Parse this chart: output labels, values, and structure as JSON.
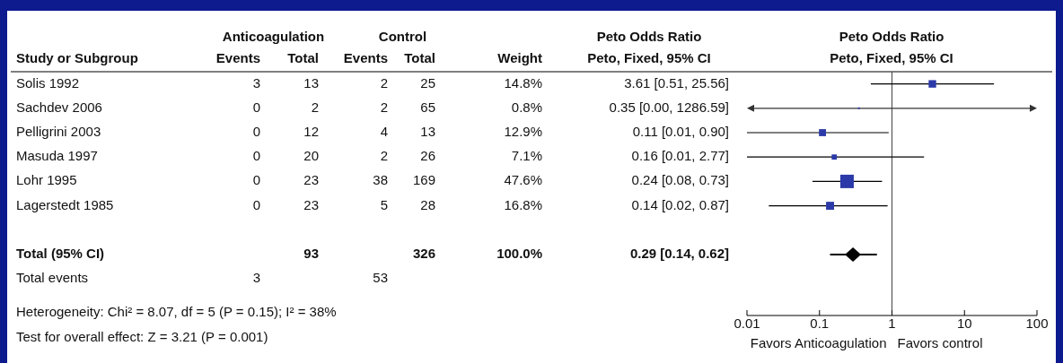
{
  "chart_data": [
    {
      "type": "other",
      "categories": [
        "Solis 1992",
        "Sachdev 2006",
        "Pelligrini 2003",
        "Masuda 1997",
        "Lohr 1995",
        "Lagerstedt 1985",
        "Total (95% CI)",
        "Total events"
      ],
      "series": [
        {
          "name": "Events",
          "values": [
            3,
            0,
            0,
            0,
            0,
            0,
            null,
            3
          ]
        },
        {
          "name": "Total",
          "values": [
            13,
            2,
            12,
            20,
            23,
            23,
            93,
            null
          ]
        },
        {
          "name": "Events",
          "values": [
            2,
            2,
            4,
            2,
            38,
            5,
            null,
            53
          ]
        },
        {
          "name": "Total",
          "values": [
            25,
            65,
            13,
            26,
            169,
            28,
            326,
            null
          ]
        },
        {
          "name": "Weight",
          "values": [
            14.8,
            0.8,
            12.9,
            7.1,
            47.6,
            16.8,
            100.0,
            null
          ],
          "value_labels": [
            "14.8%",
            "0.8%",
            "12.9%",
            "7.1%",
            "47.6%",
            "16.8%",
            "100.0%",
            null
          ]
        },
        {
          "values": [
            3.61,
            0.35,
            0.11,
            0.16,
            0.24,
            0.14,
            0.29,
            null
          ],
          "value_labels": [
            "3.61 [0.51, 25.56]",
            "0.35 [0.00, 1286.59]",
            "0.11 [0.01, 0.90]",
            "0.16 [0.01, 2.77]",
            "0.24 [0.08, 0.73]",
            "0.14 [0.02, 0.87]",
            "0.29 [0.14, 0.62]",
            null
          ]
        }
      ],
      "data_labels": true,
      "annotations": [
        "Study or Subgroup",
        "Anticoagulation",
        "Control",
        "Peto Odds Ratio",
        "Peto, Fixed, 95% CI",
        "Heterogeneity: Chi² = 8.07, df = 5 (P = 0.15); I² = 38%",
        "Test for overall effect: Z = 3.21 (P = 0.001)"
      ]
    },
    {
      "type": "bubble",
      "title": "Peto Odds Ratio",
      "subtitle": "Peto, Fixed, 95% CI",
      "categories": [
        null,
        null,
        null,
        null,
        null,
        null,
        null,
        null,
        null,
        null
      ],
      "series": [
        {
          "type": "bubble",
          "marker": "square",
          "color": "#2b3aa8",
          "values": [
            3.61,
            0.35,
            0.11,
            0.16,
            0.24,
            0.14,
            null,
            null,
            null,
            null
          ],
          "sizes": [
            0.311,
            0.017,
            0.271,
            0.149,
            1,
            0.353,
            null,
            null,
            null,
            null
          ],
          "errors": [
            [
              0.51,
              25.56
            ],
            null,
            [
              0.01,
              0.9
            ],
            [
              0.01,
              2.77
            ],
            [
              0.08,
              0.73
            ],
            [
              0.02,
              0.87
            ],
            null,
            null,
            null,
            null
          ]
        },
        {
          "type": "scatter",
          "marker": "diamond",
          "color": "#000000",
          "values": [
            null,
            null,
            null,
            null,
            null,
            null,
            null,
            0.29,
            null,
            null
          ],
          "errors": [
            null,
            null,
            null,
            null,
            null,
            null,
            null,
            [
              0.14,
              0.62
            ],
            null,
            null
          ]
        }
      ],
      "orientation": "horizontal",
      "log": "x",
      "xlim": [
        0.01,
        100
      ],
      "xticks": [
        0.01,
        0.1,
        1,
        10,
        100
      ],
      "ref_lines": [
        {
          "axis": "x",
          "value": 1
        }
      ],
      "annotations": [
        "Favors Anticoagulation",
        "Favors control"
      ]
    }
  ]
}
